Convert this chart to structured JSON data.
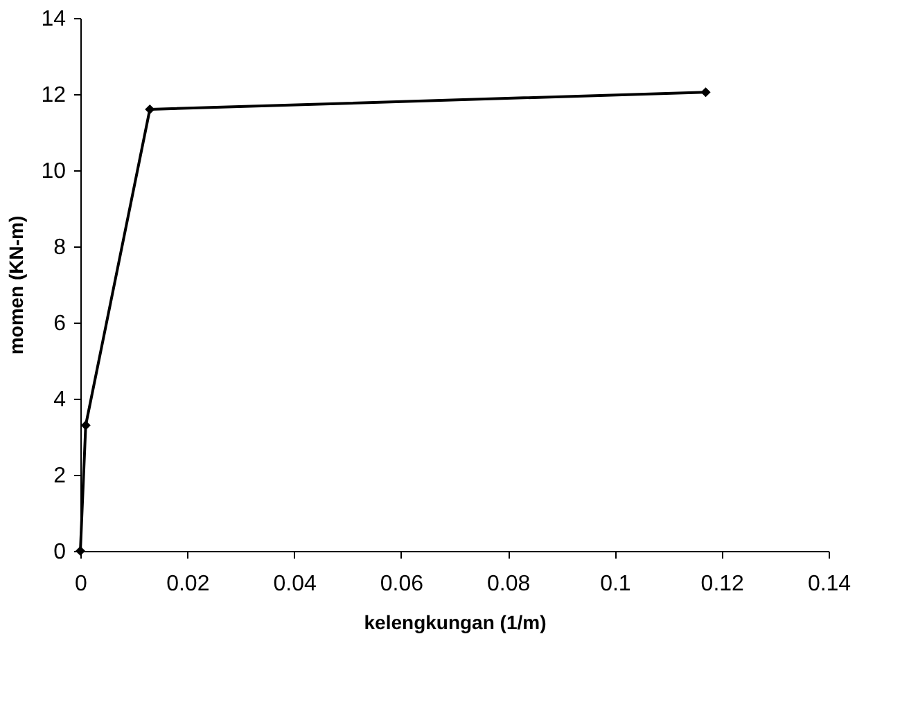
{
  "chart_data": {
    "type": "line",
    "xlabel": "kelengkungan (1/m)",
    "ylabel": "momen (KN-m)",
    "x": [
      0,
      0.001,
      0.013,
      0.117
    ],
    "series": [
      {
        "color": "#000000",
        "values": [
          0,
          3.3,
          11.6,
          12.05
        ]
      }
    ],
    "xlim": [
      0,
      0.14
    ],
    "xticks": [
      0,
      0.02,
      0.04,
      0.06,
      0.08,
      0.1,
      0.12,
      0.14
    ],
    "ylim": [
      0,
      14
    ],
    "yticks": [
      0,
      2,
      4,
      6,
      8,
      10,
      12,
      14
    ],
    "grid": false,
    "marker": "diamond",
    "line_style": "solid"
  }
}
